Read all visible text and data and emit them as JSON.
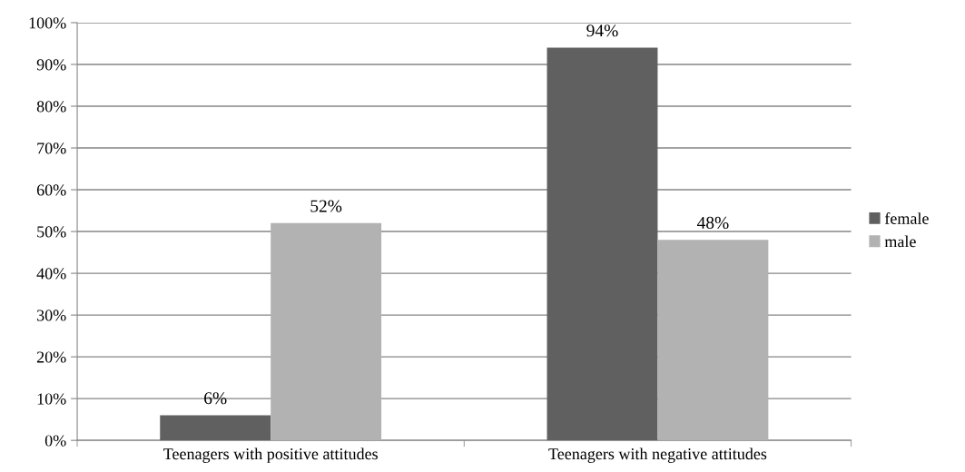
{
  "chart_data": {
    "type": "bar",
    "categories": [
      "Teenagers with positive attitudes",
      "Teenagers with negative attitudes"
    ],
    "series": [
      {
        "name": "female",
        "color": "#606060",
        "values": [
          6,
          94
        ],
        "value_labels": [
          "6%",
          "94%"
        ]
      },
      {
        "name": "male",
        "color": "#b2b2b2",
        "values": [
          52,
          48
        ],
        "value_labels": [
          "52%",
          "48%"
        ]
      }
    ],
    "ylim": [
      0,
      100
    ],
    "yticks": [
      {
        "value": 0,
        "label": "0%"
      },
      {
        "value": 10,
        "label": "10%"
      },
      {
        "value": 20,
        "label": "20%"
      },
      {
        "value": 30,
        "label": "30%"
      },
      {
        "value": 40,
        "label": "40%"
      },
      {
        "value": 50,
        "label": "50%"
      },
      {
        "value": 60,
        "label": "60%"
      },
      {
        "value": 70,
        "label": "70%"
      },
      {
        "value": 80,
        "label": "80%"
      },
      {
        "value": 90,
        "label": "90%"
      },
      {
        "value": 100,
        "label": "100%"
      }
    ],
    "grid": "y",
    "legend": "right"
  }
}
